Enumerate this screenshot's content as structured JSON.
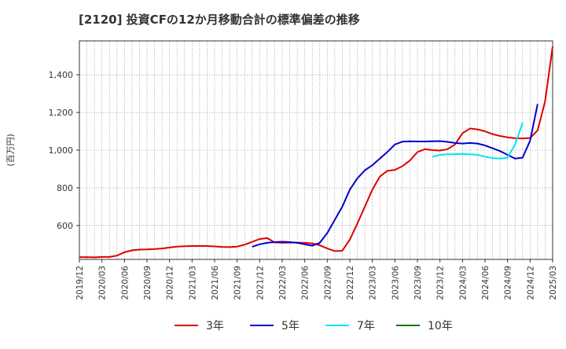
{
  "title": "[2120]  投資CFの12か月移動合計の標準偏差の推移",
  "chart_data": {
    "type": "line",
    "title": "[2120]  投資CFの12か月移動合計の標準偏差の推移",
    "ylabel": "(百万円)",
    "xlabel": "",
    "ylim": [
      420,
      1580
    ],
    "y_ticks": [
      600,
      800,
      1000,
      1200,
      1400
    ],
    "y_tick_labels": [
      "600",
      "800",
      "1,000",
      "1,200",
      "1,400"
    ],
    "x_tick_labels": [
      "2019/12",
      "2020/03",
      "2020/06",
      "2020/09",
      "2020/12",
      "2021/03",
      "2021/06",
      "2021/09",
      "2021/12",
      "2022/03",
      "2022/06",
      "2022/09",
      "2022/12",
      "2023/03",
      "2023/06",
      "2023/09",
      "2023/12",
      "2024/03",
      "2024/06",
      "2024/09",
      "2024/12",
      "2025/03"
    ],
    "grid": true,
    "legend_position": "bottom",
    "x_start": "2019/12",
    "series": [
      {
        "name": "3年",
        "color": "#dd0000",
        "start": "2019/12",
        "values": [
          432,
          432,
          431,
          433,
          433,
          440,
          458,
          468,
          472,
          473,
          475,
          478,
          483,
          488,
          490,
          491,
          491,
          491,
          489,
          486,
          485,
          488,
          498,
          513,
          528,
          533,
          510,
          508,
          509,
          509,
          508,
          505,
          495,
          478,
          464,
          466,
          525,
          610,
          700,
          790,
          860,
          890,
          895,
          915,
          945,
          990,
          1005,
          1000,
          998,
          1005,
          1030,
          1090,
          1115,
          1110,
          1100,
          1085,
          1075,
          1068,
          1063,
          1062,
          1064,
          1105,
          1260,
          1550
        ]
      },
      {
        "name": "5年",
        "color": "#0000cc",
        "start": "2021/11",
        "values": [
          487,
          500,
          508,
          512,
          514,
          512,
          508,
          500,
          493,
          508,
          560,
          630,
          700,
          790,
          850,
          893,
          920,
          955,
          990,
          1030,
          1045,
          1047,
          1046,
          1046,
          1047,
          1048,
          1044,
          1038,
          1035,
          1038,
          1035,
          1025,
          1010,
          995,
          975,
          955,
          960,
          1050,
          1245
        ]
      },
      {
        "name": "7年",
        "color": "#00e5ee",
        "start": "2023/11",
        "values": [
          965,
          975,
          978,
          978,
          980,
          978,
          975,
          965,
          958,
          955,
          960,
          1030,
          1145
        ]
      },
      {
        "name": "10年",
        "color": "#007700",
        "start": "2023/11",
        "values": []
      }
    ]
  }
}
